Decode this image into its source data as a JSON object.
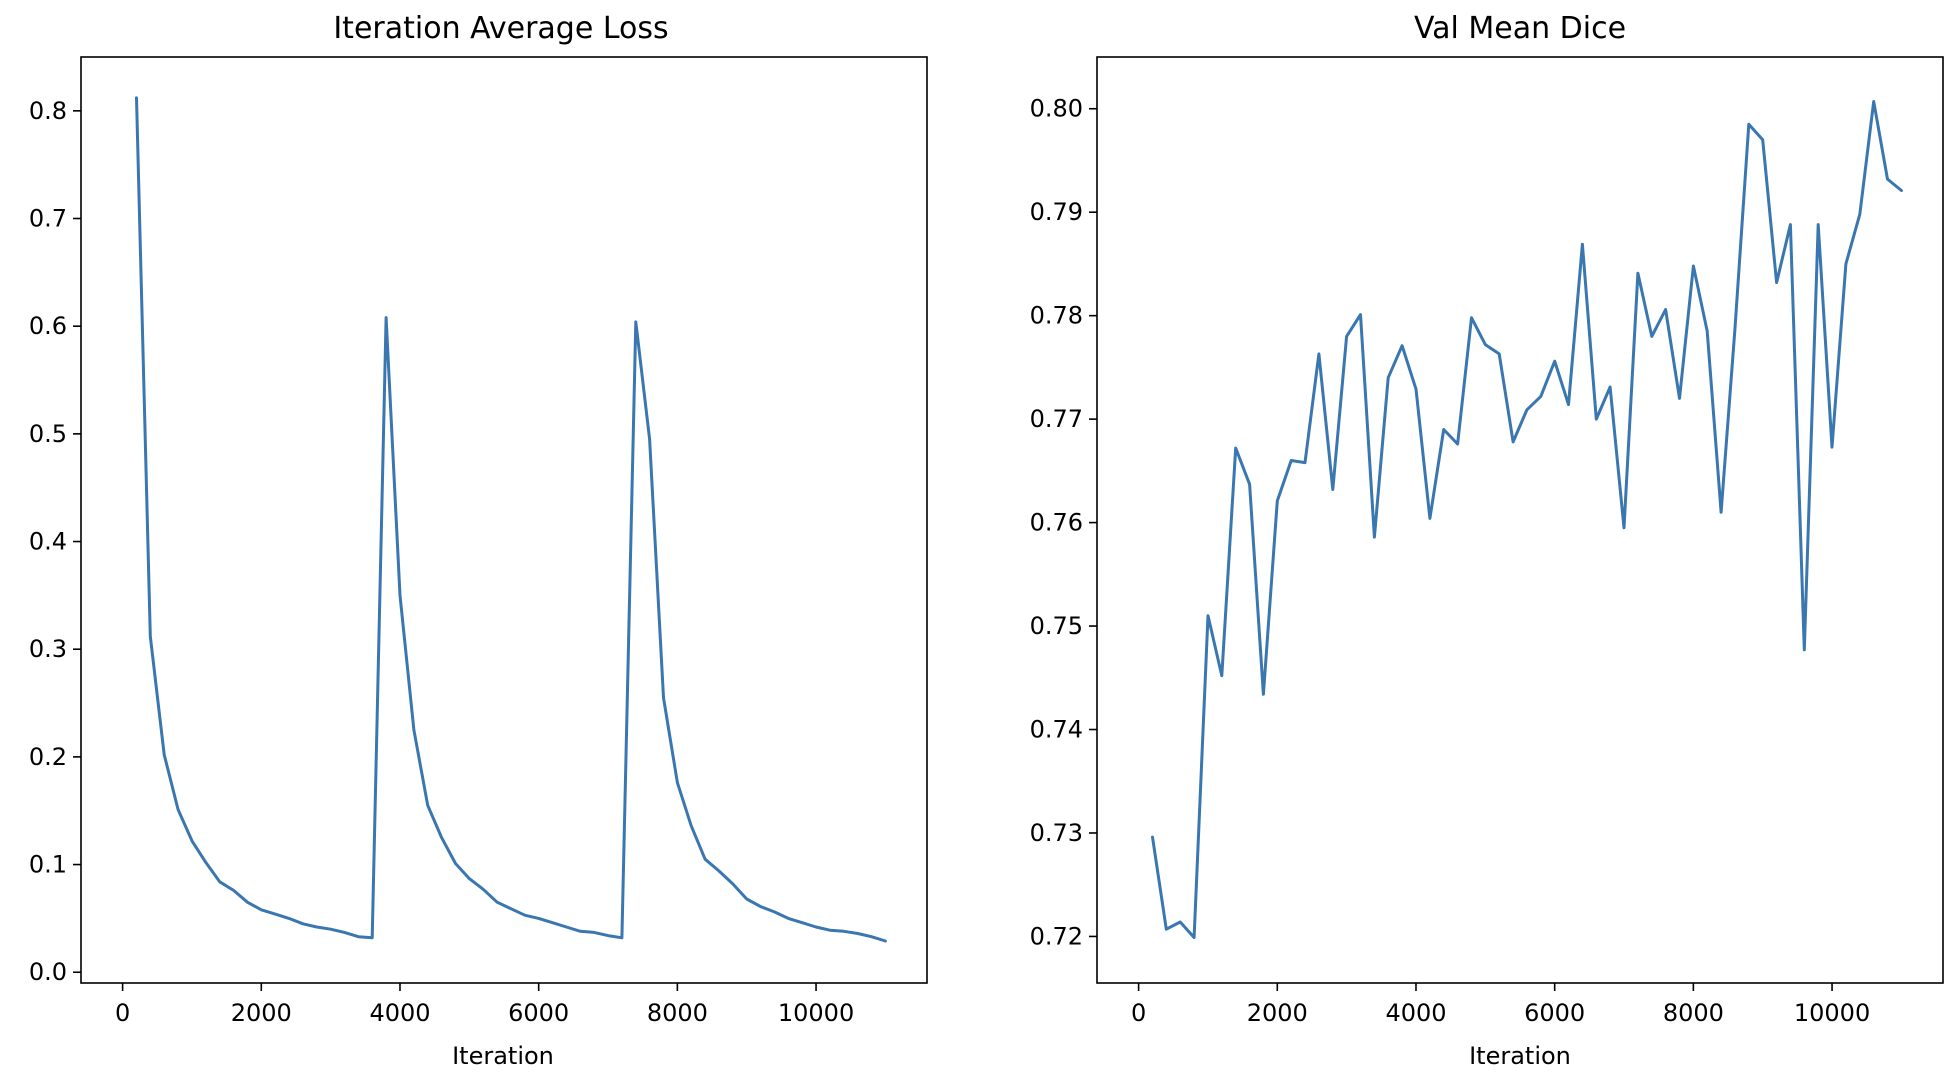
{
  "colors": {
    "line": "#3a76b0",
    "frame": "#000000",
    "background": "#ffffff"
  },
  "chart_data": [
    {
      "type": "line",
      "title": "Iteration Average Loss",
      "xlabel": "Iteration",
      "ylabel": "",
      "xlim": [
        -600,
        11600
      ],
      "ylim": [
        -0.01,
        0.85
      ],
      "xticks": [
        0,
        2000,
        4000,
        6000,
        8000,
        10000
      ],
      "xtick_labels": [
        "0",
        "2000",
        "4000",
        "6000",
        "8000",
        "10000"
      ],
      "yticks": [
        0.0,
        0.1,
        0.2,
        0.3,
        0.4,
        0.5,
        0.6,
        0.7,
        0.8
      ],
      "ytick_labels": [
        "0.0",
        "0.1",
        "0.2",
        "0.3",
        "0.4",
        "0.5",
        "0.6",
        "0.7",
        "0.8"
      ],
      "grid": false,
      "series": [
        {
          "x": [
            200,
            400,
            600,
            800,
            1000,
            1200,
            1400,
            1600,
            1800,
            2000,
            2200,
            2400,
            2600,
            2800,
            3000,
            3200,
            3400,
            3600,
            3800,
            4000,
            4200,
            4400,
            4600,
            4800,
            5000,
            5200,
            5400,
            5600,
            5800,
            6000,
            6200,
            6400,
            6600,
            6800,
            7000,
            7200,
            7400,
            7600,
            7800,
            8000,
            8200,
            8400,
            8600,
            8800,
            9000,
            9200,
            9400,
            9600,
            9800,
            10000,
            10200,
            10400,
            10600,
            10800,
            11000
          ],
          "y": [
            0.812,
            0.312,
            0.202,
            0.151,
            0.122,
            0.102,
            0.084,
            0.076,
            0.065,
            0.058,
            0.054,
            0.05,
            0.045,
            0.042,
            0.04,
            0.037,
            0.033,
            0.032,
            0.608,
            0.35,
            0.225,
            0.155,
            0.125,
            0.101,
            0.087,
            0.077,
            0.065,
            0.059,
            0.053,
            0.05,
            0.046,
            0.042,
            0.038,
            0.037,
            0.034,
            0.032,
            0.604,
            0.495,
            0.255,
            0.176,
            0.136,
            0.105,
            0.094,
            0.082,
            0.068,
            0.061,
            0.056,
            0.05,
            0.046,
            0.042,
            0.039,
            0.038,
            0.036,
            0.033,
            0.029
          ]
        }
      ]
    },
    {
      "type": "line",
      "title": "Val Mean Dice",
      "xlabel": "Iteration",
      "ylabel": "",
      "xlim": [
        -600,
        11600
      ],
      "ylim": [
        0.7155,
        0.805
      ],
      "xticks": [
        0,
        2000,
        4000,
        6000,
        8000,
        10000
      ],
      "xtick_labels": [
        "0",
        "2000",
        "4000",
        "6000",
        "8000",
        "10000"
      ],
      "yticks": [
        0.72,
        0.73,
        0.74,
        0.75,
        0.76,
        0.77,
        0.78,
        0.79,
        0.8
      ],
      "ytick_labels": [
        "0.72",
        "0.73",
        "0.74",
        "0.75",
        "0.76",
        "0.77",
        "0.78",
        "0.79",
        "0.80"
      ],
      "grid": false,
      "series": [
        {
          "x": [
            200,
            400,
            600,
            800,
            1000,
            1200,
            1400,
            1600,
            1800,
            2000,
            2200,
            2400,
            2600,
            2800,
            3000,
            3200,
            3400,
            3600,
            3800,
            4000,
            4200,
            4400,
            4600,
            4800,
            5000,
            5200,
            5400,
            5600,
            5800,
            6000,
            6200,
            6400,
            6600,
            6800,
            7000,
            7200,
            7400,
            7600,
            7800,
            8000,
            8200,
            8400,
            8600,
            8800,
            9000,
            9200,
            9400,
            9600,
            9800,
            10000,
            10200,
            10400,
            10600,
            10800,
            11000
          ],
          "y": [
            0.7296,
            0.7207,
            0.7214,
            0.7199,
            0.751,
            0.7452,
            0.7672,
            0.7637,
            0.7434,
            0.7621,
            0.766,
            0.7658,
            0.7763,
            0.7632,
            0.778,
            0.7801,
            0.7586,
            0.774,
            0.7771,
            0.7729,
            0.7604,
            0.769,
            0.7676,
            0.7798,
            0.7772,
            0.7763,
            0.7678,
            0.7709,
            0.7722,
            0.7756,
            0.7714,
            0.7869,
            0.77,
            0.7731,
            0.7595,
            0.7841,
            0.778,
            0.7806,
            0.772,
            0.7848,
            0.7785,
            0.761,
            0.7788,
            0.7985,
            0.797,
            0.7832,
            0.7888,
            0.7477,
            0.7888,
            0.7673,
            0.785,
            0.7898,
            0.8007,
            0.7932,
            0.7921
          ]
        }
      ]
    }
  ]
}
